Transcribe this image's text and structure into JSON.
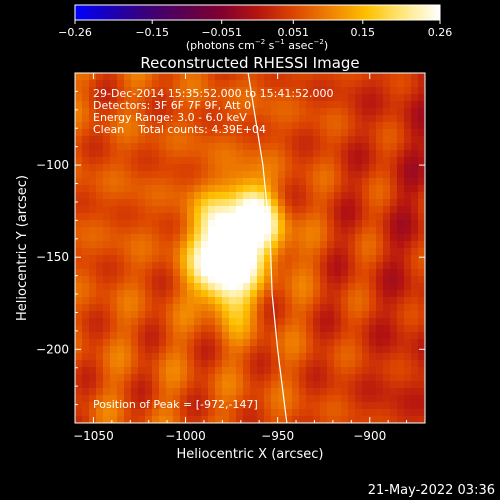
{
  "chart_data": {
    "type": "heatmap",
    "title": "Reconstructed RHESSI Image",
    "xlabel": "Heliocentric X (arcsec)",
    "ylabel": "Heliocentric Y (arcsec)",
    "xlim": [
      -1060,
      -870
    ],
    "ylim": [
      -240,
      -50
    ],
    "x_ticks": [
      -1050,
      -1000,
      -950,
      -900
    ],
    "x_tick_labels": [
      "−1050",
      "−1000",
      "−950",
      "−900"
    ],
    "y_ticks": [
      -100,
      -150,
      -200
    ],
    "y_tick_labels": [
      "−100",
      "−150",
      "−200"
    ],
    "annotations": [
      "29-Dec-2014 15:35:52.000 to 15:41:52.000",
      "Detectors: 3F 6F 7F 9F, Att 0",
      "Energy Range: 3.0 - 6.0 keV",
      "Clean    Total counts: 4.39E+04"
    ],
    "peak_label": "Position of Peak = [-972,-147]",
    "peak_position": [
      -972,
      -147
    ],
    "colorbar": {
      "ticks": [
        -0.26,
        -0.15,
        -0.051,
        0.051,
        0.15,
        0.26
      ],
      "tick_labels": [
        "−0.26",
        "−0.15",
        "−0.051",
        "0.051",
        "0.15",
        "0.26"
      ],
      "units_main": "(photons cm",
      "units_exp1": "−2",
      "units_mid": " s",
      "units_exp2": "−1",
      "units_mid2": " asec",
      "units_exp3": "−2",
      "units_end": ")",
      "range": [
        -0.26,
        0.26
      ],
      "colormap": [
        "#0000ff",
        "#1a00b4",
        "#3c0078",
        "#5a0050",
        "#800030",
        "#b41410",
        "#dc4600",
        "#f08200",
        "#ffc000",
        "#ffe880",
        "#ffffff"
      ]
    },
    "sources": [
      {
        "x": -976,
        "y": -142,
        "intensity": 0.26
      },
      {
        "x": -961,
        "y": -128,
        "intensity": 0.21
      },
      {
        "x": -983,
        "y": -162,
        "intensity": 0.2
      }
    ],
    "limb_curve": [
      [
        -966,
        -50
      ],
      [
        -958,
        -100
      ],
      [
        -954,
        -140
      ],
      [
        -953,
        -170
      ],
      [
        -950,
        -200
      ],
      [
        -945,
        -240
      ]
    ],
    "grid": false
  },
  "footer": {
    "timestamp": "21-May-2022 03:36"
  }
}
